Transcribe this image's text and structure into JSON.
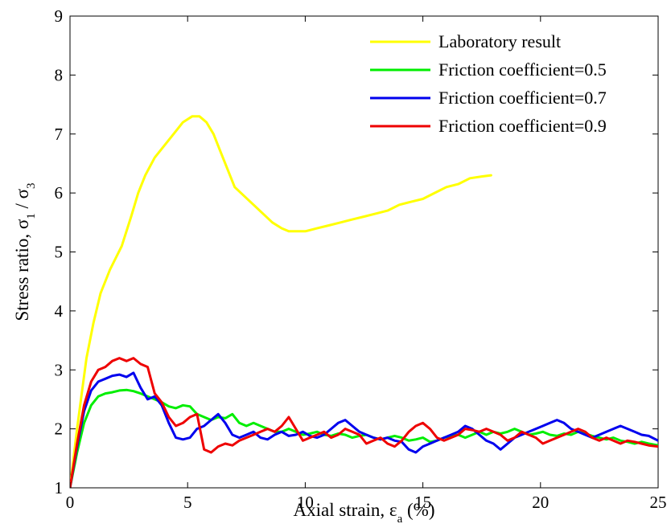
{
  "chart_data": {
    "type": "line",
    "title": "",
    "xlabel": "Axial strain, ε_a (%)",
    "xlabel_parts": {
      "main": "Axial strain, ε",
      "sub": "a",
      "tail": " (%)"
    },
    "ylabel": "Stress ratio, σ_1 / σ_3",
    "ylabel_parts": {
      "main": "Stress ratio, σ",
      "sub1": "1",
      "mid": " / σ",
      "sub2": "3"
    },
    "xlim": [
      0,
      25
    ],
    "ylim": [
      1,
      9
    ],
    "xticks": [
      "0",
      "5",
      "10",
      "15",
      "20",
      "25"
    ],
    "yticks": [
      "1",
      "2",
      "3",
      "4",
      "5",
      "6",
      "7",
      "8",
      "9"
    ],
    "grid": false,
    "legend_position": "top-right",
    "series": [
      {
        "name": "Laboratory result",
        "color": "#ffff00",
        "x": [
          0,
          0.3,
          0.5,
          0.7,
          1.0,
          1.3,
          1.7,
          2.2,
          2.6,
          2.9,
          3.2,
          3.6,
          4.0,
          4.4,
          4.8,
          5.2,
          5.5,
          5.8,
          6.1,
          6.4,
          6.7,
          7.0,
          7.4,
          7.8,
          8.2,
          8.6,
          9.0,
          9.3,
          9.6,
          10.0,
          10.5,
          11.0,
          11.5,
          12.0,
          12.5,
          13.0,
          13.5,
          14.0,
          14.5,
          15.0,
          15.5,
          16.0,
          16.5,
          17.0,
          17.5,
          17.9
        ],
        "values": [
          1.0,
          2.0,
          2.6,
          3.2,
          3.8,
          4.3,
          4.7,
          5.1,
          5.6,
          6.0,
          6.3,
          6.6,
          6.8,
          7.0,
          7.2,
          7.3,
          7.3,
          7.2,
          7.0,
          6.7,
          6.4,
          6.1,
          5.95,
          5.8,
          5.65,
          5.5,
          5.4,
          5.35,
          5.35,
          5.35,
          5.4,
          5.45,
          5.5,
          5.55,
          5.6,
          5.65,
          5.7,
          5.8,
          5.85,
          5.9,
          6.0,
          6.1,
          6.15,
          6.25,
          6.28,
          6.3
        ]
      },
      {
        "name": "Friction coefficient=0.5",
        "color": "#00ee00",
        "x": [
          0,
          0.3,
          0.6,
          0.9,
          1.2,
          1.5,
          1.8,
          2.1,
          2.4,
          2.7,
          3.0,
          3.3,
          3.6,
          3.9,
          4.2,
          4.5,
          4.8,
          5.1,
          5.4,
          5.7,
          6.0,
          6.3,
          6.6,
          6.9,
          7.2,
          7.5,
          7.8,
          8.1,
          8.4,
          8.7,
          9.0,
          9.3,
          9.6,
          9.9,
          10.2,
          10.5,
          10.8,
          11.1,
          11.4,
          11.7,
          12.0,
          12.3,
          12.6,
          12.9,
          13.2,
          13.5,
          13.8,
          14.1,
          14.4,
          14.7,
          15.0,
          15.3,
          15.6,
          15.9,
          16.2,
          16.5,
          16.8,
          17.1,
          17.4,
          17.7,
          18.0,
          18.3,
          18.6,
          18.9,
          19.2,
          19.5,
          19.8,
          20.1,
          20.4,
          20.7,
          21.0,
          21.3,
          21.6,
          21.9,
          22.2,
          22.5,
          22.8,
          23.1,
          23.4,
          23.7,
          24.0,
          24.3,
          24.6,
          25.0
        ],
        "values": [
          1.0,
          1.6,
          2.1,
          2.4,
          2.55,
          2.6,
          2.62,
          2.65,
          2.66,
          2.64,
          2.6,
          2.55,
          2.5,
          2.45,
          2.38,
          2.35,
          2.4,
          2.38,
          2.25,
          2.2,
          2.15,
          2.2,
          2.18,
          2.25,
          2.1,
          2.05,
          2.1,
          2.05,
          2.0,
          1.95,
          1.95,
          2.0,
          1.95,
          1.9,
          1.92,
          1.95,
          1.9,
          1.88,
          1.92,
          1.9,
          1.85,
          1.88,
          1.9,
          1.85,
          1.82,
          1.85,
          1.88,
          1.85,
          1.8,
          1.82,
          1.85,
          1.78,
          1.8,
          1.85,
          1.88,
          1.9,
          1.85,
          1.9,
          1.95,
          1.9,
          1.95,
          1.92,
          1.95,
          2.0,
          1.95,
          1.9,
          1.92,
          1.95,
          1.9,
          1.88,
          1.92,
          1.9,
          1.95,
          1.92,
          1.88,
          1.85,
          1.82,
          1.85,
          1.8,
          1.78,
          1.75,
          1.78,
          1.75,
          1.72
        ]
      },
      {
        "name": "Friction coefficient=0.7",
        "color": "#0000ee",
        "x": [
          0,
          0.3,
          0.6,
          0.9,
          1.2,
          1.5,
          1.8,
          2.1,
          2.4,
          2.7,
          3.0,
          3.3,
          3.6,
          3.9,
          4.2,
          4.5,
          4.8,
          5.1,
          5.4,
          5.7,
          6.0,
          6.3,
          6.6,
          6.9,
          7.2,
          7.5,
          7.8,
          8.1,
          8.4,
          8.7,
          9.0,
          9.3,
          9.6,
          9.9,
          10.2,
          10.5,
          10.8,
          11.1,
          11.4,
          11.7,
          12.0,
          12.3,
          12.6,
          12.9,
          13.2,
          13.5,
          13.8,
          14.1,
          14.4,
          14.7,
          15.0,
          15.3,
          15.6,
          15.9,
          16.2,
          16.5,
          16.8,
          17.1,
          17.4,
          17.7,
          18.0,
          18.3,
          18.6,
          18.9,
          19.2,
          19.5,
          19.8,
          20.1,
          20.4,
          20.7,
          21.0,
          21.3,
          21.6,
          21.9,
          22.2,
          22.5,
          22.8,
          23.1,
          23.4,
          23.7,
          24.0,
          24.3,
          24.6,
          25.0
        ],
        "values": [
          1.0,
          1.7,
          2.3,
          2.65,
          2.8,
          2.85,
          2.9,
          2.92,
          2.88,
          2.95,
          2.7,
          2.5,
          2.55,
          2.4,
          2.1,
          1.85,
          1.82,
          1.85,
          2.0,
          2.05,
          2.15,
          2.25,
          2.1,
          1.9,
          1.85,
          1.9,
          1.95,
          1.85,
          1.82,
          1.9,
          1.95,
          1.88,
          1.9,
          1.95,
          1.88,
          1.85,
          1.9,
          2.0,
          2.1,
          2.15,
          2.05,
          1.95,
          1.9,
          1.85,
          1.82,
          1.85,
          1.8,
          1.78,
          1.65,
          1.6,
          1.7,
          1.75,
          1.8,
          1.85,
          1.9,
          1.95,
          2.05,
          2.0,
          1.9,
          1.8,
          1.75,
          1.65,
          1.75,
          1.85,
          1.9,
          1.95,
          2.0,
          2.05,
          2.1,
          2.15,
          2.1,
          2.0,
          1.95,
          1.9,
          1.85,
          1.9,
          1.95,
          2.0,
          2.05,
          2.0,
          1.95,
          1.9,
          1.88,
          1.8
        ]
      },
      {
        "name": "Friction coefficient=0.9",
        "color": "#ee0000",
        "x": [
          0,
          0.3,
          0.6,
          0.9,
          1.2,
          1.5,
          1.8,
          2.1,
          2.4,
          2.7,
          3.0,
          3.3,
          3.6,
          3.9,
          4.2,
          4.5,
          4.8,
          5.1,
          5.4,
          5.7,
          6.0,
          6.3,
          6.6,
          6.9,
          7.2,
          7.5,
          7.8,
          8.1,
          8.4,
          8.7,
          9.0,
          9.3,
          9.6,
          9.9,
          10.2,
          10.5,
          10.8,
          11.1,
          11.4,
          11.7,
          12.0,
          12.3,
          12.6,
          12.9,
          13.2,
          13.5,
          13.8,
          14.1,
          14.4,
          14.7,
          15.0,
          15.3,
          15.6,
          15.9,
          16.2,
          16.5,
          16.8,
          17.1,
          17.4,
          17.7,
          18.0,
          18.3,
          18.6,
          18.9,
          19.2,
          19.5,
          19.8,
          20.1,
          20.4,
          20.7,
          21.0,
          21.3,
          21.6,
          21.9,
          22.2,
          22.5,
          22.8,
          23.1,
          23.4,
          23.7,
          24.0,
          24.3,
          24.6,
          25.0
        ],
        "values": [
          1.0,
          1.75,
          2.4,
          2.8,
          3.0,
          3.05,
          3.15,
          3.2,
          3.15,
          3.2,
          3.1,
          3.05,
          2.6,
          2.45,
          2.2,
          2.05,
          2.1,
          2.2,
          2.25,
          1.65,
          1.6,
          1.7,
          1.75,
          1.72,
          1.8,
          1.85,
          1.9,
          1.95,
          2.0,
          1.95,
          2.05,
          2.2,
          2.0,
          1.8,
          1.85,
          1.9,
          1.95,
          1.85,
          1.9,
          2.0,
          1.95,
          1.9,
          1.75,
          1.8,
          1.85,
          1.75,
          1.7,
          1.8,
          1.95,
          2.05,
          2.1,
          2.0,
          1.85,
          1.8,
          1.85,
          1.9,
          2.0,
          1.98,
          1.95,
          2.0,
          1.95,
          1.9,
          1.8,
          1.85,
          1.95,
          1.9,
          1.85,
          1.75,
          1.8,
          1.85,
          1.9,
          1.95,
          2.0,
          1.95,
          1.85,
          1.8,
          1.85,
          1.8,
          1.75,
          1.8,
          1.78,
          1.75,
          1.72,
          1.7
        ]
      }
    ]
  }
}
